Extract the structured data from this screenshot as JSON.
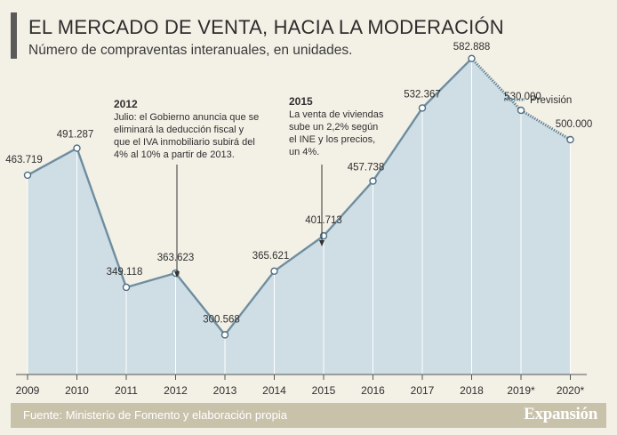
{
  "header": {
    "title": "EL MERCADO DE VENTA, HACIA LA MODERACIÓN",
    "subtitle": "Número de compraventas interanuales, en unidades."
  },
  "legend": {
    "label": "Previsión"
  },
  "chart_data": {
    "type": "area",
    "categories": [
      "2009",
      "2010",
      "2011",
      "2012",
      "2013",
      "2014",
      "2015",
      "2016",
      "2017",
      "2018",
      "2019*",
      "2020*"
    ],
    "values": [
      463719,
      491287,
      349118,
      363623,
      300568,
      365621,
      401713,
      457738,
      532367,
      582888,
      530000,
      500000
    ],
    "value_labels": [
      "463.719",
      "491.287",
      "349.118",
      "363.623",
      "300.568",
      "365.621",
      "401.713",
      "457.738",
      "532.367",
      "582.888",
      "530.000",
      "500.000"
    ],
    "forecast_from_index": 9,
    "legend_position": "top-right",
    "grid": "vertical",
    "ylim": [
      260000,
      600000
    ],
    "colors": {
      "area": "#cfdde4",
      "line": "#6e8ea0",
      "forecast": "#5f8195",
      "marker_fill": "#ffffff",
      "grid": "#ffffff",
      "annotation": "#333333"
    },
    "annotations": [
      {
        "index": 3,
        "year": "2012",
        "lines": [
          "Julio: el Gobierno anuncia que se",
          "eliminará la deducción fiscal y",
          "que el IVA inmobiliario subirá del",
          "4% al 10% a partir de 2013."
        ]
      },
      {
        "index": 6,
        "year": "2015",
        "lines": [
          "La venta de viviendas",
          "sube un 2,2% según",
          "el INE y los precios,",
          "un 4%."
        ]
      }
    ]
  },
  "footer": {
    "source": "Fuente: Ministerio de Fomento y elaboración propia",
    "brand": "Expansión"
  }
}
